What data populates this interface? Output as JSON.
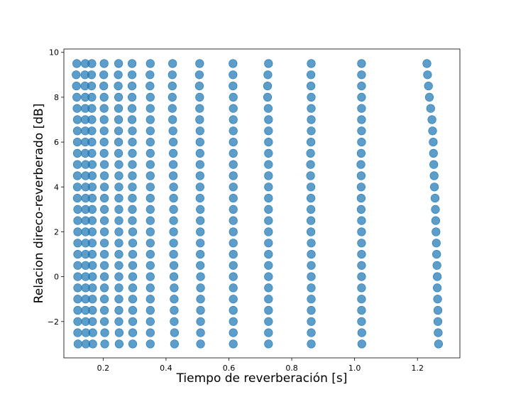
{
  "chart_data": {
    "type": "scatter",
    "title": "",
    "xlabel": "Tiempo de reverberación [s]",
    "ylabel": "Relacion direco-reverberado [dB]",
    "xlim": [
      0.075,
      1.335
    ],
    "ylim": [
      -3.62,
      10.15
    ],
    "xticks": [
      0.2,
      0.4,
      0.6,
      0.8,
      1.0,
      1.2
    ],
    "xtick_labels": [
      "0.2",
      "0.4",
      "0.6",
      "0.8",
      "1.0",
      "1.2"
    ],
    "yticks": [
      -2,
      0,
      2,
      4,
      6,
      8,
      10
    ],
    "ytick_labels": [
      "−2",
      "0",
      "2",
      "4",
      "6",
      "8",
      "10"
    ],
    "grid": false,
    "marker_color": "#1f77b4",
    "y_levels": [
      9.5,
      9.0,
      8.5,
      8.0,
      7.5,
      7.0,
      6.5,
      6.0,
      5.5,
      5.0,
      4.5,
      4.0,
      3.5,
      3.0,
      2.5,
      2.0,
      1.5,
      1.0,
      0.5,
      0.0,
      -0.5,
      -1.0,
      -1.5,
      -2.0,
      -2.5,
      -3.0
    ],
    "columns": [
      {
        "x": [
          0.116,
          0.114,
          0.115,
          0.116,
          0.117,
          0.118,
          0.118,
          0.118,
          0.118,
          0.118,
          0.118,
          0.118,
          0.118,
          0.119,
          0.119,
          0.119,
          0.119,
          0.119,
          0.119,
          0.119,
          0.119,
          0.119,
          0.119,
          0.119,
          0.119,
          0.12
        ]
      },
      {
        "x": [
          0.143,
          0.142,
          0.142,
          0.143,
          0.143,
          0.143,
          0.143,
          0.143,
          0.143,
          0.144,
          0.144,
          0.144,
          0.144,
          0.144,
          0.144,
          0.144,
          0.144,
          0.144,
          0.144,
          0.144,
          0.144,
          0.144,
          0.144,
          0.144,
          0.145,
          0.145
        ]
      },
      {
        "x": [
          0.164,
          0.163,
          0.163,
          0.164,
          0.164,
          0.164,
          0.164,
          0.164,
          0.164,
          0.165,
          0.165,
          0.165,
          0.165,
          0.165,
          0.165,
          0.165,
          0.165,
          0.165,
          0.166,
          0.166,
          0.166,
          0.166,
          0.166,
          0.166,
          0.167,
          0.167
        ]
      },
      {
        "x": [
          0.203,
          0.202,
          0.202,
          0.203,
          0.203,
          0.203,
          0.203,
          0.203,
          0.203,
          0.204,
          0.204,
          0.204,
          0.204,
          0.204,
          0.204,
          0.204,
          0.204,
          0.204,
          0.204,
          0.204,
          0.204,
          0.204,
          0.204,
          0.204,
          0.205,
          0.205
        ]
      },
      {
        "x": [
          0.249,
          0.248,
          0.248,
          0.249,
          0.249,
          0.249,
          0.249,
          0.249,
          0.249,
          0.25,
          0.25,
          0.25,
          0.25,
          0.25,
          0.25,
          0.25,
          0.25,
          0.25,
          0.25,
          0.25,
          0.25,
          0.25,
          0.25,
          0.25,
          0.251,
          0.251
        ]
      },
      {
        "x": [
          0.292,
          0.292,
          0.292,
          0.292,
          0.292,
          0.292,
          0.293,
          0.293,
          0.293,
          0.293,
          0.293,
          0.293,
          0.293,
          0.293,
          0.293,
          0.294,
          0.294,
          0.294,
          0.294,
          0.294,
          0.294,
          0.294,
          0.294,
          0.294,
          0.294,
          0.294
        ]
      },
      {
        "x": [
          0.35,
          0.349,
          0.349,
          0.35,
          0.35,
          0.35,
          0.35,
          0.35,
          0.35,
          0.35,
          0.35,
          0.35,
          0.35,
          0.35,
          0.35,
          0.35,
          0.35,
          0.35,
          0.35,
          0.35,
          0.35,
          0.35,
          0.35,
          0.35,
          0.35,
          0.35
        ]
      },
      {
        "x": [
          0.421,
          0.42,
          0.42,
          0.42,
          0.42,
          0.421,
          0.422,
          0.423,
          0.423,
          0.423,
          0.423,
          0.424,
          0.424,
          0.424,
          0.424,
          0.424,
          0.424,
          0.424,
          0.425,
          0.425,
          0.426,
          0.426,
          0.426,
          0.426,
          0.427,
          0.427
        ]
      },
      {
        "x": [
          0.507,
          0.506,
          0.506,
          0.507,
          0.507,
          0.507,
          0.508,
          0.508,
          0.508,
          0.508,
          0.508,
          0.508,
          0.508,
          0.509,
          0.509,
          0.509,
          0.509,
          0.509,
          0.509,
          0.51,
          0.51,
          0.51,
          0.51,
          0.51,
          0.51,
          0.51
        ]
      },
      {
        "x": [
          0.613,
          0.613,
          0.613,
          0.614,
          0.614,
          0.614,
          0.614,
          0.614,
          0.614,
          0.614,
          0.614,
          0.614,
          0.614,
          0.614,
          0.614,
          0.614,
          0.614,
          0.614,
          0.614,
          0.614,
          0.614,
          0.614,
          0.614,
          0.614,
          0.614,
          0.614
        ]
      },
      {
        "x": [
          0.726,
          0.724,
          0.723,
          0.723,
          0.725,
          0.726,
          0.726,
          0.726,
          0.726,
          0.726,
          0.726,
          0.726,
          0.726,
          0.726,
          0.726,
          0.726,
          0.726,
          0.726,
          0.726,
          0.726,
          0.726,
          0.726,
          0.726,
          0.726,
          0.726,
          0.726
        ]
      },
      {
        "x": [
          0.862,
          0.861,
          0.861,
          0.862,
          0.862,
          0.862,
          0.862,
          0.861,
          0.86,
          0.86,
          0.86,
          0.861,
          0.861,
          0.861,
          0.861,
          0.861,
          0.862,
          0.862,
          0.862,
          0.862,
          0.862,
          0.862,
          0.862,
          0.862,
          0.862,
          0.862
        ]
      },
      {
        "x": [
          1.022,
          1.022,
          1.022,
          1.022,
          1.022,
          1.022,
          1.022,
          1.022,
          1.021,
          1.02,
          1.021,
          1.021,
          1.021,
          1.021,
          1.022,
          1.022,
          1.022,
          1.022,
          1.022,
          1.022,
          1.022,
          1.022,
          1.022,
          1.022,
          1.023,
          1.023
        ]
      },
      {
        "x": [
          1.23,
          1.232,
          1.235,
          1.238,
          1.242,
          1.246,
          1.248,
          1.25,
          1.251,
          1.252,
          1.253,
          1.254,
          1.256,
          1.257,
          1.258,
          1.259,
          1.26,
          1.261,
          1.262,
          1.263,
          1.263,
          1.264,
          1.265,
          1.265,
          1.266,
          1.267
        ]
      }
    ]
  }
}
